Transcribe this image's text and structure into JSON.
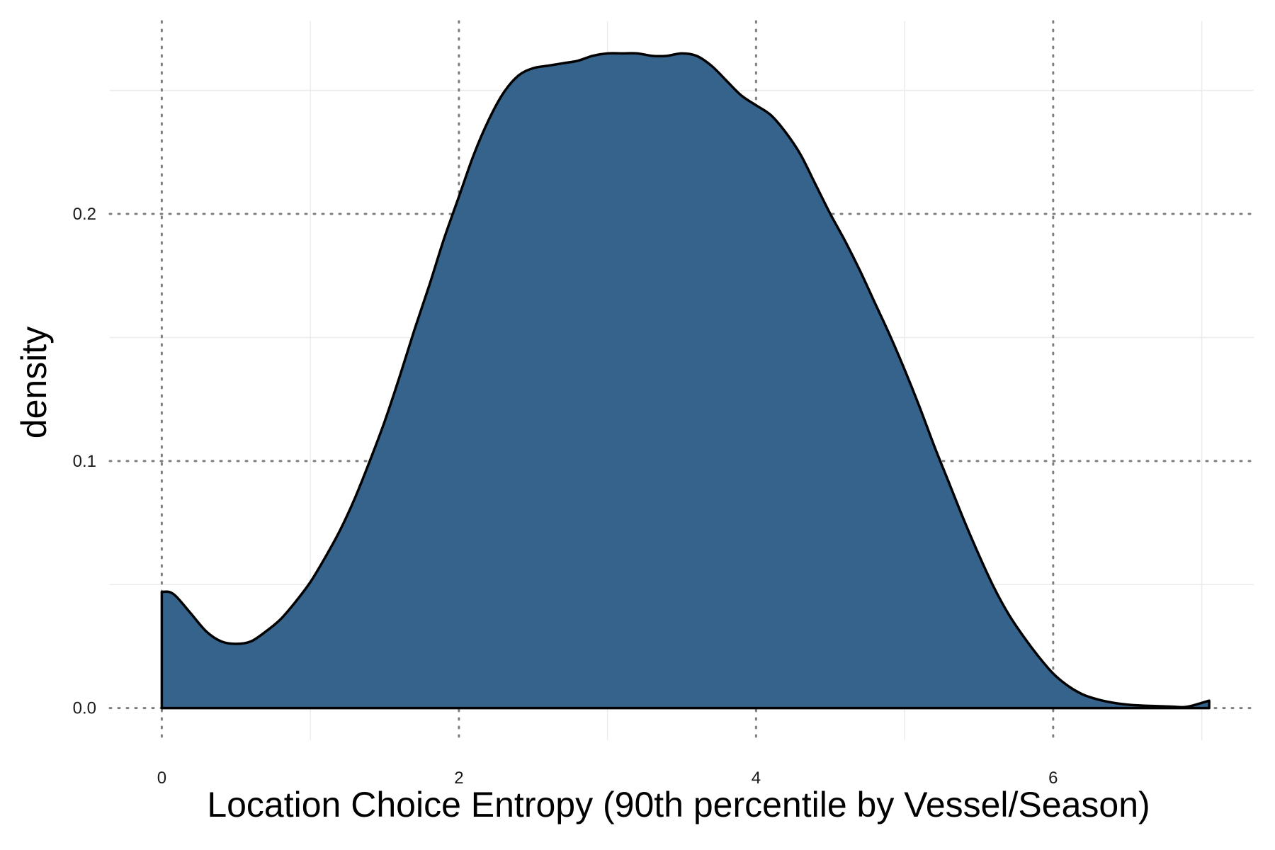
{
  "chart_data": {
    "type": "area",
    "subtype": "density",
    "title": "",
    "xlabel": "Location Choice Entropy (90th percentile by Vessel/Season)",
    "ylabel": "density",
    "xlim": [
      -0.35,
      7.35
    ],
    "ylim": [
      -0.013,
      0.278
    ],
    "x_ticks": [
      0,
      2,
      4,
      6
    ],
    "x_tick_labels": [
      "0",
      "2",
      "4",
      "6"
    ],
    "y_ticks": [
      0.0,
      0.1,
      0.2
    ],
    "y_tick_labels": [
      "0.0",
      "0.1",
      "0.2"
    ],
    "x_minor_gridlines": [
      1,
      3,
      5,
      7
    ],
    "y_minor_gridlines": [
      0.05,
      0.15,
      0.25
    ],
    "grid": true,
    "major_grid_style": "dotted",
    "fill_color": "#35638b",
    "line_color": "#000000",
    "series": [
      {
        "x": [
          0,
          0.05,
          0.1,
          0.2,
          0.3,
          0.4,
          0.5,
          0.6,
          0.7,
          0.8,
          0.9,
          1.0,
          1.1,
          1.2,
          1.3,
          1.4,
          1.5,
          1.6,
          1.7,
          1.8,
          1.9,
          2.0,
          2.1,
          2.2,
          2.3,
          2.4,
          2.5,
          2.6,
          2.7,
          2.8,
          2.9,
          3.0,
          3.1,
          3.2,
          3.3,
          3.4,
          3.5,
          3.6,
          3.7,
          3.8,
          3.9,
          4.0,
          4.1,
          4.2,
          4.3,
          4.4,
          4.5,
          4.6,
          4.7,
          4.8,
          4.9,
          5.0,
          5.1,
          5.2,
          5.3,
          5.4,
          5.5,
          5.6,
          5.7,
          5.8,
          5.9,
          6.0,
          6.1,
          6.2,
          6.3,
          6.4,
          6.5,
          6.6,
          6.7,
          6.8,
          6.9,
          7.05
        ],
        "y": [
          0.047,
          0.047,
          0.045,
          0.038,
          0.031,
          0.027,
          0.026,
          0.027,
          0.031,
          0.036,
          0.043,
          0.051,
          0.061,
          0.072,
          0.085,
          0.1,
          0.116,
          0.134,
          0.153,
          0.171,
          0.19,
          0.207,
          0.224,
          0.238,
          0.249,
          0.256,
          0.259,
          0.26,
          0.261,
          0.262,
          0.264,
          0.265,
          0.265,
          0.265,
          0.264,
          0.264,
          0.265,
          0.264,
          0.26,
          0.254,
          0.248,
          0.244,
          0.24,
          0.233,
          0.224,
          0.212,
          0.2,
          0.189,
          0.177,
          0.164,
          0.151,
          0.137,
          0.122,
          0.106,
          0.091,
          0.076,
          0.062,
          0.049,
          0.038,
          0.029,
          0.021,
          0.014,
          0.009,
          0.0055,
          0.0035,
          0.0022,
          0.0014,
          0.001,
          0.0008,
          0.0006,
          0.0005,
          0.003
        ]
      }
    ]
  }
}
